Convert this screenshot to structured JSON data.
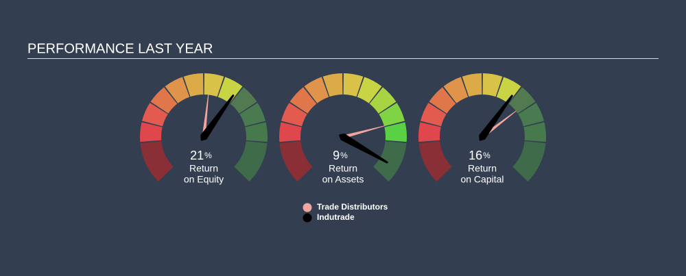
{
  "title": "PERFORMANCE LAST YEAR",
  "chart_data": [
    {
      "type": "gauge",
      "label": [
        "Return",
        "on Equity"
      ],
      "unit": "%",
      "ylim": [
        -20,
        45
      ],
      "series": [
        {
          "name": "Trade Distributors",
          "color": "#f2a59e",
          "values": [
            14
          ]
        },
        {
          "name": "Indutrade",
          "color": "#000000",
          "values": [
            21
          ]
        }
      ]
    },
    {
      "type": "gauge",
      "label": [
        "Return",
        "on Assets"
      ],
      "unit": "%",
      "ylim": [
        -8,
        10
      ],
      "series": [
        {
          "name": "Trade Distributors",
          "color": "#f2a59e",
          "values": [
            6
          ]
        },
        {
          "name": "Indutrade",
          "color": "#000000",
          "values": [
            9
          ]
        }
      ]
    },
    {
      "type": "gauge",
      "label": [
        "Return",
        "on Capital"
      ],
      "unit": "%",
      "ylim": [
        -15,
        34
      ],
      "series": [
        {
          "name": "Trade Distributors",
          "color": "#f2a59e",
          "values": [
            19
          ]
        },
        {
          "name": "Indutrade",
          "color": "#000000",
          "values": [
            16
          ]
        }
      ]
    }
  ]
}
